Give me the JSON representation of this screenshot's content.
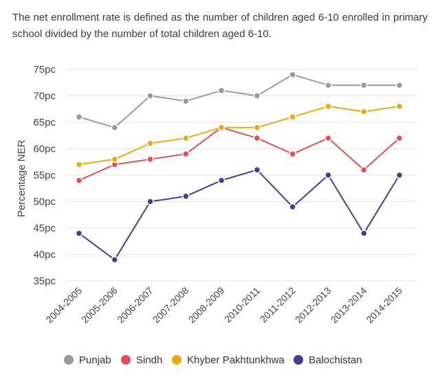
{
  "caption": "The net enrollment rate is defined as the number of children aged 6-10 enrolled in primary school divided by the number of total children aged 6-10.",
  "chart_data": {
    "type": "line",
    "title": "",
    "xlabel": "",
    "ylabel": "Percentage NER",
    "ylim": [
      35,
      75
    ],
    "yticks": [
      35,
      40,
      45,
      50,
      55,
      60,
      65,
      70,
      75
    ],
    "ytick_labels": [
      "35pc",
      "40pc",
      "45pc",
      "50pc",
      "55pc",
      "60pc",
      "65pc",
      "70pc",
      "75pc"
    ],
    "grid": true,
    "legend_position": "bottom",
    "categories": [
      "2004-2005",
      "2005-2006",
      "2006-2007",
      "2007-2008",
      "2008-2009",
      "2010-2011",
      "2011-2012",
      "2012-2013",
      "2013-2014",
      "2014-2015"
    ],
    "series": [
      {
        "name": "Punjab",
        "color": "#999999",
        "values": [
          66,
          64,
          70,
          69,
          71,
          70,
          74,
          72,
          72,
          72
        ]
      },
      {
        "name": "Sindh",
        "color": "#e05058",
        "values": [
          54,
          57,
          58,
          59,
          64,
          62,
          59,
          62,
          56,
          62
        ]
      },
      {
        "name": "Khyber Pakhtunkhwa",
        "color": "#e8aa14",
        "values": [
          57,
          58,
          61,
          62,
          64,
          64,
          66,
          68,
          67,
          68
        ]
      },
      {
        "name": "Balochistan",
        "color": "#4a3a93",
        "values": [
          44,
          39,
          50,
          51,
          54,
          56,
          49,
          55,
          44,
          55
        ]
      }
    ]
  }
}
